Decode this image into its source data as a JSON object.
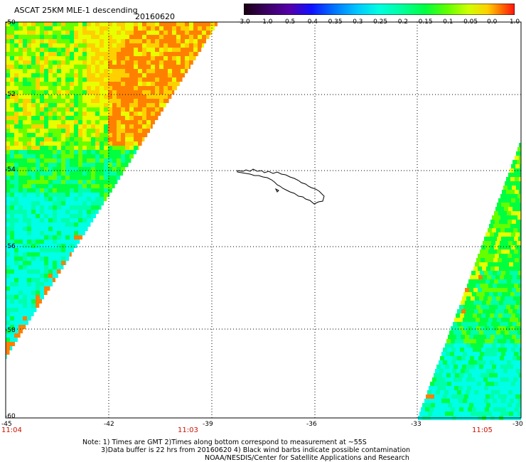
{
  "header": {
    "title": "ASCAT 25KM MLE-1 descending",
    "date": "20160620"
  },
  "colorbar": {
    "labels": [
      "-3.0",
      "-1.0",
      "-0.5",
      "-0.4",
      "-0.35",
      "-0.3",
      "-0.25",
      "-0.2",
      "-0.15",
      "-0.1",
      "-0.05",
      "0.0",
      "1.0"
    ],
    "colors": [
      "#1a0010",
      "#5500aa",
      "#1010ff",
      "#0070ff",
      "#00c8ff",
      "#00ffe0",
      "#00ffa0",
      "#00ff40",
      "#60ff00",
      "#d0ff00",
      "#ffd000",
      "#ff7000",
      "#ff1010"
    ]
  },
  "map": {
    "lat_labels": [
      "-50",
      "-52",
      "-54",
      "-56",
      "-58",
      "-60"
    ],
    "lon_labels": [
      "-45",
      "-42",
      "-39",
      "-36",
      "-33",
      "-30"
    ],
    "time_labels": [
      "11:04",
      "11:03",
      "11:05"
    ],
    "swath_colors": {
      "cyan": "#00ffe6",
      "aqua": "#00ffaa",
      "green": "#00ff40",
      "lime": "#66ff00",
      "yellow": "#e8ff00",
      "amber": "#ffd000",
      "orange": "#ff8000",
      "blue": "#0060ff"
    }
  },
  "footer": {
    "line1": "Note: 1) Times are GMT 2)Times along bottom correspond to measurement at ~55S",
    "line2": "3)Data buffer is 22 hrs from 20160620 4) Black wind barbs indicate possible contamination",
    "line3": "NOAA/NESDIS/Center for Satellite Applications and Research"
  }
}
